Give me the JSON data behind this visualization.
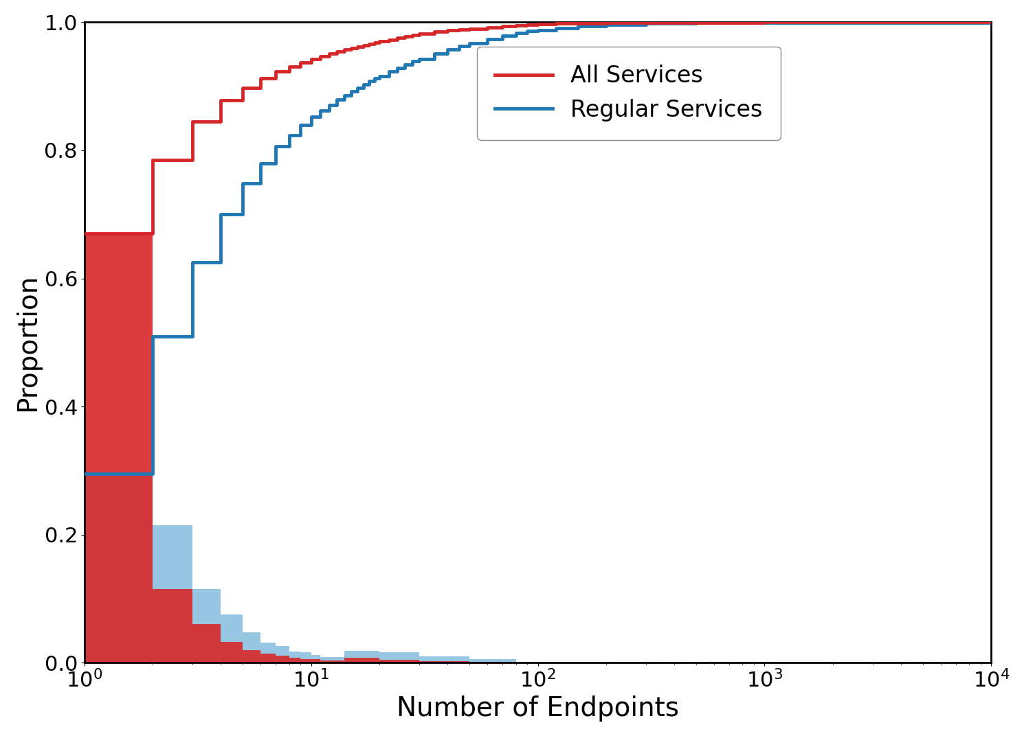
{
  "xlabel": "Number of Endpoints",
  "ylabel": "Proportion",
  "ylim": [
    0.0,
    1.0
  ],
  "legend_labels": [
    "All Services",
    "Regular Services"
  ],
  "cdf_all_x": [
    1,
    2,
    3,
    4,
    5,
    6,
    7,
    8,
    9,
    10,
    11,
    12,
    13,
    14,
    15,
    16,
    17,
    18,
    19,
    20,
    22,
    24,
    26,
    28,
    30,
    35,
    40,
    45,
    50,
    60,
    70,
    80,
    90,
    100,
    120,
    150,
    200,
    300,
    500,
    1000,
    10000
  ],
  "cdf_all_y": [
    0.67,
    0.785,
    0.845,
    0.878,
    0.898,
    0.912,
    0.923,
    0.931,
    0.937,
    0.943,
    0.947,
    0.951,
    0.954,
    0.957,
    0.96,
    0.962,
    0.964,
    0.966,
    0.968,
    0.97,
    0.973,
    0.976,
    0.978,
    0.98,
    0.982,
    0.985,
    0.987,
    0.989,
    0.99,
    0.992,
    0.994,
    0.995,
    0.996,
    0.997,
    0.998,
    0.9985,
    0.999,
    0.9995,
    0.9998,
    0.9999,
    1.0
  ],
  "cdf_reg_x": [
    1,
    2,
    3,
    4,
    5,
    6,
    7,
    8,
    9,
    10,
    11,
    12,
    13,
    14,
    15,
    16,
    17,
    18,
    19,
    20,
    22,
    24,
    26,
    28,
    30,
    35,
    40,
    45,
    50,
    60,
    70,
    80,
    90,
    100,
    120,
    150,
    200,
    300,
    500,
    1000,
    10000
  ],
  "cdf_reg_y": [
    0.295,
    0.51,
    0.625,
    0.7,
    0.748,
    0.78,
    0.806,
    0.824,
    0.84,
    0.852,
    0.862,
    0.871,
    0.879,
    0.886,
    0.892,
    0.898,
    0.903,
    0.908,
    0.912,
    0.916,
    0.923,
    0.929,
    0.934,
    0.939,
    0.943,
    0.951,
    0.958,
    0.963,
    0.967,
    0.974,
    0.979,
    0.983,
    0.986,
    0.988,
    0.991,
    0.994,
    0.996,
    0.998,
    0.999,
    0.9995,
    1.0
  ],
  "hist_bins": [
    1,
    2,
    3,
    4,
    5,
    6,
    7,
    8,
    9,
    10,
    11,
    14,
    20,
    30,
    50
  ],
  "hist_all_h": [
    0.67,
    0.115,
    0.06,
    0.033,
    0.02,
    0.014,
    0.011,
    0.008,
    0.006,
    0.006,
    0.004,
    0.008,
    0.005,
    0.003,
    0.002
  ],
  "hist_reg_h": [
    0.295,
    0.215,
    0.115,
    0.075,
    0.048,
    0.032,
    0.026,
    0.018,
    0.016,
    0.012,
    0.009,
    0.019,
    0.017,
    0.01,
    0.006
  ],
  "color_all_line": "#d62728",
  "color_reg_line": "#1f77b4",
  "color_all_hist": "#d62728",
  "color_reg_hist": "#6baed6",
  "linewidth": 3.5,
  "hist_alpha_all": 0.9,
  "hist_alpha_reg": 0.7
}
